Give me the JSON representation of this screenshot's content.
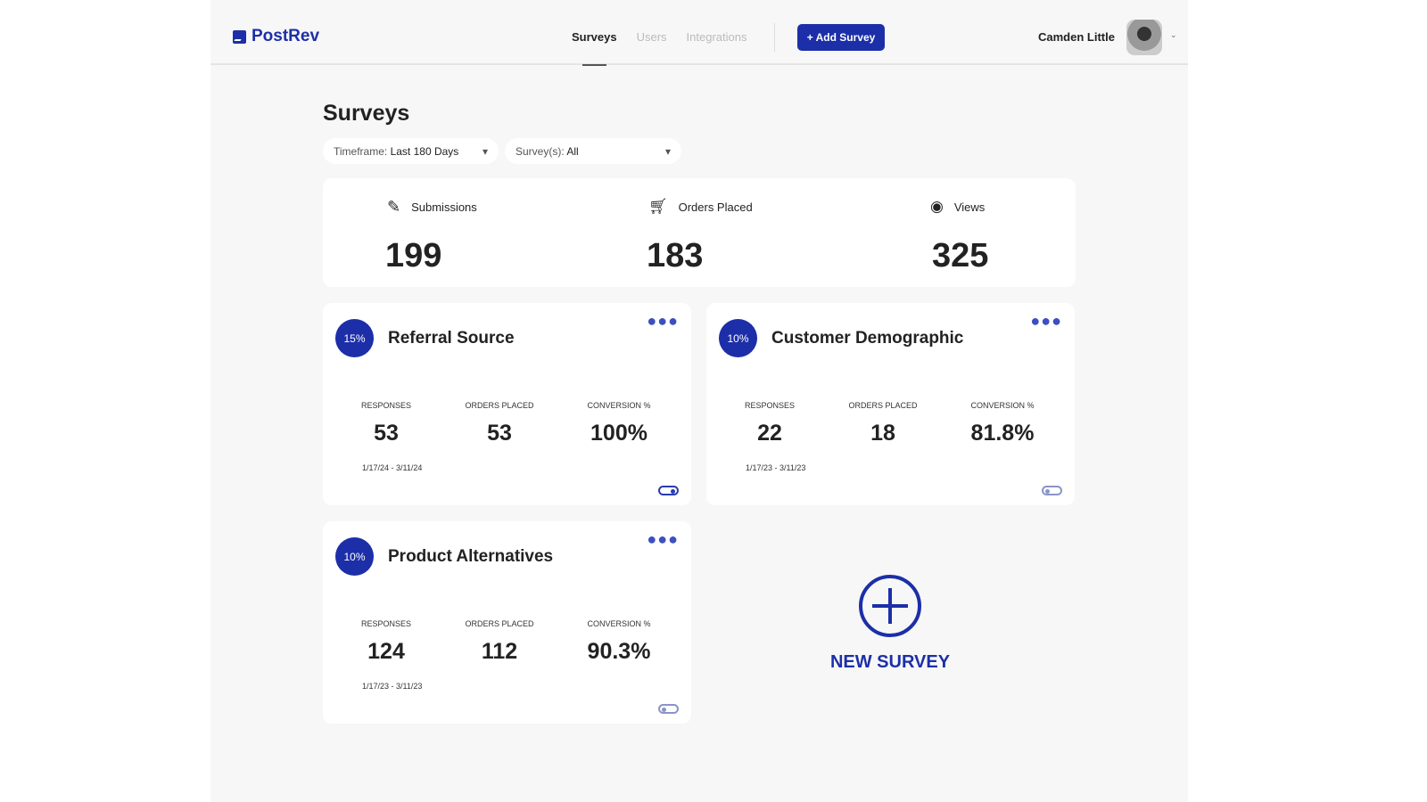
{
  "header": {
    "brand": "PostRev",
    "nav": [
      "Surveys",
      "Users",
      "Integrations"
    ],
    "add_button": "+ Add Survey",
    "user_name": "Camden Little"
  },
  "page": {
    "title": "Surveys",
    "filters": [
      {
        "label": "Timeframe:",
        "value": "Last 180 Days"
      },
      {
        "label": "Survey(s):",
        "value": "All"
      }
    ]
  },
  "stats": [
    {
      "label": "Submissions",
      "value": "199",
      "icon": "edit-icon"
    },
    {
      "label": "Orders Placed",
      "value": "183",
      "icon": "cart-icon"
    },
    {
      "label": "Views",
      "value": "325",
      "icon": "eye-icon"
    }
  ],
  "column_headers": [
    "RESPONSES",
    "ORDERS PLACED",
    "CONVERSION %"
  ],
  "surveys": [
    {
      "title": "Referral Source",
      "percent": "15%",
      "responses": "53",
      "orders": "53",
      "conversion": "100%",
      "dates": "1/17/24 - 3/11/24",
      "enabled": true
    },
    {
      "title": "Customer Demographic",
      "percent": "10%",
      "responses": "22",
      "orders": "18",
      "conversion": "81.8%",
      "dates": "1/17/23 - 3/11/23",
      "enabled": false
    },
    {
      "title": "Product Alternatives",
      "percent": "10%",
      "responses": "124",
      "orders": "112",
      "conversion": "90.3%",
      "dates": "1/17/23 - 3/11/23",
      "enabled": false
    }
  ],
  "new_survey": "NEW SURVEY",
  "colors": {
    "accent": "#1c2fa8"
  }
}
